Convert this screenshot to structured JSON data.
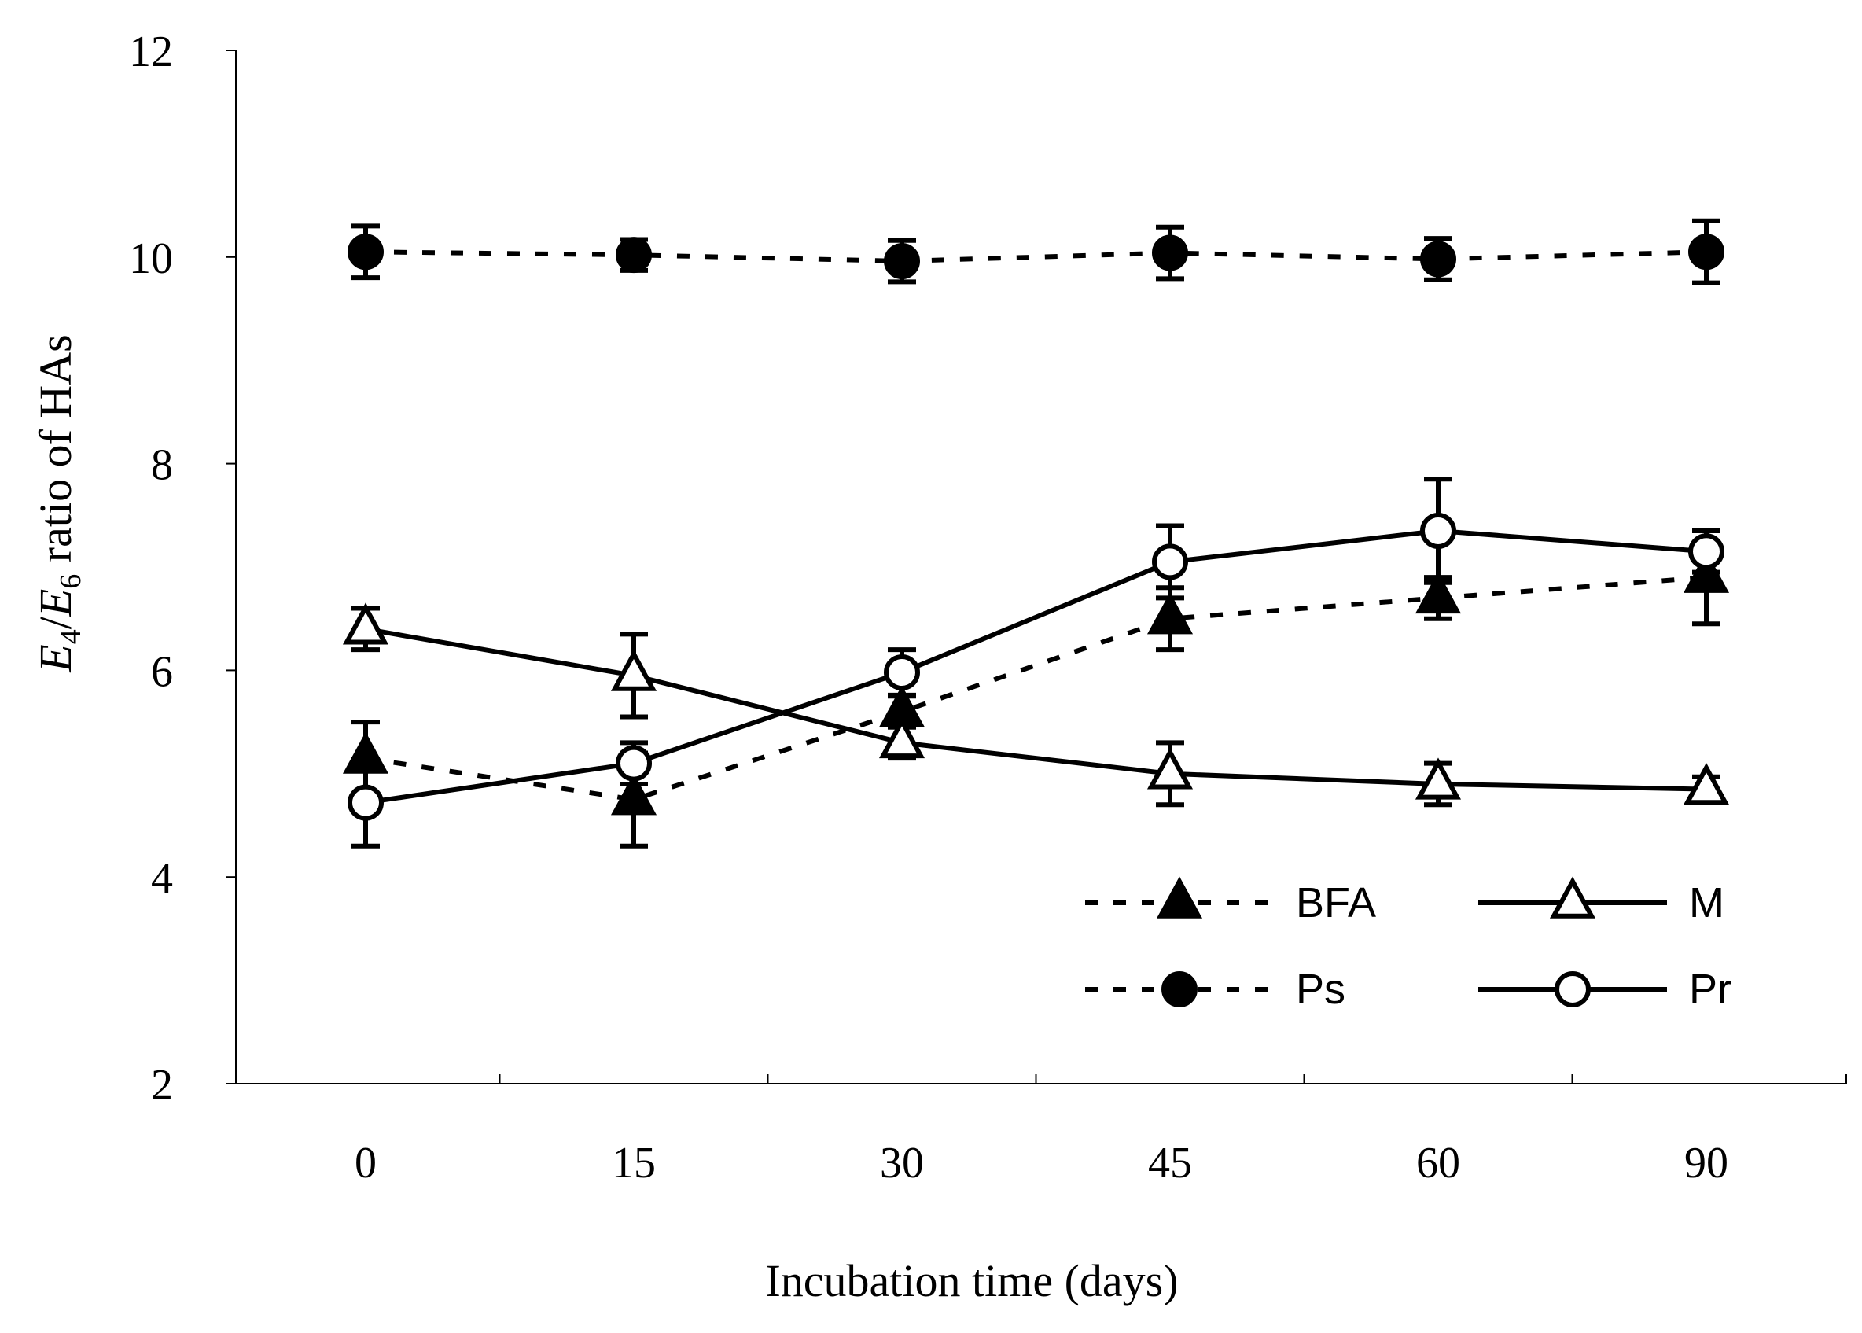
{
  "chart_data": {
    "type": "line",
    "title": "",
    "xlabel": "Incubation time (days)",
    "ylabel": {
      "e4": "E",
      "e4_sub": "4",
      "slash": "/",
      "e6": "E",
      "e6_sub": "6",
      "rest": " ratio of HAs"
    },
    "categories": [
      "0",
      "15",
      "30",
      "45",
      "60",
      "90"
    ],
    "ylim": [
      2,
      12
    ],
    "yticks": [
      "2",
      "4",
      "6",
      "8",
      "10",
      "12"
    ],
    "legend_position": "bottom-right",
    "series": [
      {
        "name": "BFA",
        "line": "dashed",
        "marker": "triangle",
        "filled": true,
        "values": [
          5.15,
          4.75,
          5.6,
          6.5,
          6.7,
          6.9
        ],
        "errors": [
          0.35,
          0.45,
          0.15,
          0.3,
          0.2,
          0.45
        ]
      },
      {
        "name": "M",
        "line": "solid",
        "marker": "triangle",
        "filled": false,
        "values": [
          6.4,
          5.95,
          5.3,
          5.0,
          4.9,
          4.85
        ],
        "errors": [
          0.2,
          0.4,
          0.15,
          0.3,
          0.2,
          0.12
        ]
      },
      {
        "name": "Ps",
        "line": "dashed",
        "marker": "circle",
        "filled": true,
        "values": [
          10.05,
          10.02,
          9.96,
          10.04,
          9.98,
          10.05
        ],
        "errors": [
          0.25,
          0.15,
          0.2,
          0.25,
          0.2,
          0.3
        ]
      },
      {
        "name": "Pr",
        "line": "solid",
        "marker": "circle",
        "filled": false,
        "values": [
          4.72,
          5.1,
          5.98,
          7.05,
          7.35,
          7.15
        ],
        "errors": [
          0.42,
          0.2,
          0.22,
          0.35,
          0.5,
          0.2
        ]
      }
    ]
  }
}
